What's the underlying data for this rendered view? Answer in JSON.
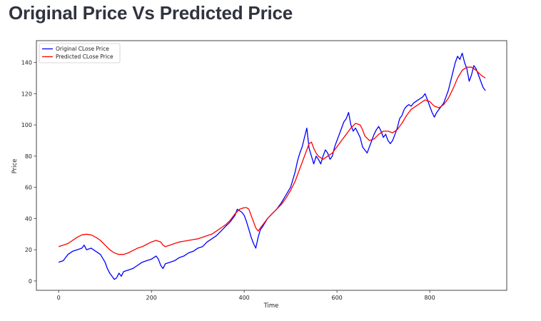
{
  "page": {
    "title": "Original Price Vs Predicted Price"
  },
  "chart_data": {
    "type": "line",
    "title": "",
    "xlabel": "Time",
    "ylabel": "Price",
    "xlim": [
      -48,
      966
    ],
    "ylim": [
      -6,
      154
    ],
    "xticks": [
      0,
      200,
      400,
      600,
      800
    ],
    "yticks": [
      0,
      20,
      40,
      60,
      80,
      100,
      120,
      140
    ],
    "grid": false,
    "legend": "top-left",
    "series": [
      {
        "name": "Original CLose Price",
        "color": "#0000ff",
        "points": [
          [
            0,
            12
          ],
          [
            10,
            13
          ],
          [
            20,
            17
          ],
          [
            30,
            19
          ],
          [
            40,
            20
          ],
          [
            50,
            21
          ],
          [
            55,
            23
          ],
          [
            60,
            20
          ],
          [
            70,
            21
          ],
          [
            80,
            19
          ],
          [
            90,
            17
          ],
          [
            100,
            12
          ],
          [
            105,
            8
          ],
          [
            110,
            5
          ],
          [
            115,
            3
          ],
          [
            120,
            1
          ],
          [
            125,
            2
          ],
          [
            130,
            5
          ],
          [
            135,
            3
          ],
          [
            140,
            6
          ],
          [
            150,
            7
          ],
          [
            160,
            8
          ],
          [
            170,
            10
          ],
          [
            180,
            12
          ],
          [
            190,
            13
          ],
          [
            200,
            14
          ],
          [
            210,
            16
          ],
          [
            215,
            14
          ],
          [
            220,
            10
          ],
          [
            225,
            8
          ],
          [
            230,
            11
          ],
          [
            240,
            12
          ],
          [
            250,
            13
          ],
          [
            260,
            15
          ],
          [
            270,
            16
          ],
          [
            280,
            18
          ],
          [
            290,
            19
          ],
          [
            300,
            21
          ],
          [
            310,
            22
          ],
          [
            320,
            25
          ],
          [
            330,
            27
          ],
          [
            340,
            29
          ],
          [
            350,
            32
          ],
          [
            360,
            35
          ],
          [
            370,
            38
          ],
          [
            380,
            42
          ],
          [
            385,
            46
          ],
          [
            390,
            45
          ],
          [
            395,
            44
          ],
          [
            400,
            42
          ],
          [
            405,
            38
          ],
          [
            410,
            33
          ],
          [
            415,
            28
          ],
          [
            420,
            24
          ],
          [
            425,
            21
          ],
          [
            430,
            28
          ],
          [
            435,
            33
          ],
          [
            440,
            35
          ],
          [
            450,
            40
          ],
          [
            460,
            43
          ],
          [
            470,
            46
          ],
          [
            480,
            50
          ],
          [
            490,
            55
          ],
          [
            500,
            60
          ],
          [
            505,
            65
          ],
          [
            510,
            70
          ],
          [
            515,
            77
          ],
          [
            520,
            82
          ],
          [
            525,
            86
          ],
          [
            530,
            92
          ],
          [
            535,
            98
          ],
          [
            540,
            85
          ],
          [
            545,
            80
          ],
          [
            550,
            75
          ],
          [
            555,
            80
          ],
          [
            560,
            78
          ],
          [
            565,
            75
          ],
          [
            570,
            80
          ],
          [
            575,
            84
          ],
          [
            580,
            82
          ],
          [
            585,
            78
          ],
          [
            590,
            80
          ],
          [
            595,
            86
          ],
          [
            600,
            90
          ],
          [
            605,
            94
          ],
          [
            610,
            98
          ],
          [
            615,
            102
          ],
          [
            620,
            104
          ],
          [
            625,
            108
          ],
          [
            630,
            100
          ],
          [
            635,
            96
          ],
          [
            640,
            98
          ],
          [
            645,
            95
          ],
          [
            650,
            92
          ],
          [
            655,
            86
          ],
          [
            660,
            84
          ],
          [
            665,
            82
          ],
          [
            670,
            86
          ],
          [
            675,
            90
          ],
          [
            680,
            94
          ],
          [
            685,
            97
          ],
          [
            690,
            99
          ],
          [
            695,
            96
          ],
          [
            700,
            92
          ],
          [
            705,
            94
          ],
          [
            710,
            90
          ],
          [
            715,
            88
          ],
          [
            720,
            90
          ],
          [
            725,
            94
          ],
          [
            730,
            98
          ],
          [
            735,
            104
          ],
          [
            740,
            106
          ],
          [
            745,
            110
          ],
          [
            750,
            112
          ],
          [
            755,
            113
          ],
          [
            760,
            112
          ],
          [
            765,
            114
          ],
          [
            770,
            115
          ],
          [
            775,
            116
          ],
          [
            780,
            117
          ],
          [
            785,
            118
          ],
          [
            790,
            120
          ],
          [
            795,
            116
          ],
          [
            800,
            112
          ],
          [
            805,
            108
          ],
          [
            810,
            105
          ],
          [
            815,
            108
          ],
          [
            820,
            110
          ],
          [
            825,
            112
          ],
          [
            830,
            114
          ],
          [
            835,
            118
          ],
          [
            840,
            122
          ],
          [
            845,
            128
          ],
          [
            850,
            134
          ],
          [
            855,
            140
          ],
          [
            860,
            144
          ],
          [
            865,
            142
          ],
          [
            870,
            146
          ],
          [
            875,
            140
          ],
          [
            880,
            136
          ],
          [
            885,
            128
          ],
          [
            890,
            132
          ],
          [
            895,
            138
          ],
          [
            900,
            136
          ],
          [
            905,
            132
          ],
          [
            910,
            128
          ],
          [
            915,
            124
          ],
          [
            920,
            122
          ]
        ]
      },
      {
        "name": "Predicted CLose Price",
        "color": "#ff0000",
        "points": [
          [
            0,
            22
          ],
          [
            10,
            23
          ],
          [
            20,
            24
          ],
          [
            30,
            26
          ],
          [
            40,
            28
          ],
          [
            50,
            29.5
          ],
          [
            60,
            30
          ],
          [
            70,
            29.5
          ],
          [
            80,
            28
          ],
          [
            90,
            26
          ],
          [
            100,
            23
          ],
          [
            110,
            20
          ],
          [
            120,
            18
          ],
          [
            130,
            17
          ],
          [
            140,
            17
          ],
          [
            150,
            18
          ],
          [
            160,
            19.5
          ],
          [
            170,
            21
          ],
          [
            180,
            22
          ],
          [
            190,
            23.5
          ],
          [
            200,
            25
          ],
          [
            210,
            26
          ],
          [
            220,
            25
          ],
          [
            225,
            23
          ],
          [
            230,
            22
          ],
          [
            240,
            23
          ],
          [
            250,
            24
          ],
          [
            260,
            25
          ],
          [
            270,
            25.5
          ],
          [
            280,
            26
          ],
          [
            290,
            26.5
          ],
          [
            300,
            27
          ],
          [
            310,
            28
          ],
          [
            320,
            29
          ],
          [
            330,
            30
          ],
          [
            340,
            32
          ],
          [
            350,
            34
          ],
          [
            360,
            36
          ],
          [
            370,
            39
          ],
          [
            380,
            43
          ],
          [
            390,
            46
          ],
          [
            400,
            47
          ],
          [
            405,
            47
          ],
          [
            410,
            46
          ],
          [
            415,
            42
          ],
          [
            420,
            38
          ],
          [
            425,
            34
          ],
          [
            430,
            32
          ],
          [
            440,
            36
          ],
          [
            450,
            40
          ],
          [
            460,
            43
          ],
          [
            470,
            46
          ],
          [
            480,
            49
          ],
          [
            490,
            53
          ],
          [
            500,
            58
          ],
          [
            510,
            64
          ],
          [
            520,
            72
          ],
          [
            530,
            80
          ],
          [
            540,
            88
          ],
          [
            545,
            89
          ],
          [
            550,
            85
          ],
          [
            555,
            82
          ],
          [
            560,
            80
          ],
          [
            570,
            78
          ],
          [
            580,
            80
          ],
          [
            590,
            82
          ],
          [
            600,
            86
          ],
          [
            610,
            90
          ],
          [
            620,
            94
          ],
          [
            630,
            98
          ],
          [
            640,
            101
          ],
          [
            650,
            100
          ],
          [
            655,
            97
          ],
          [
            660,
            93
          ],
          [
            670,
            90
          ],
          [
            680,
            91
          ],
          [
            690,
            94
          ],
          [
            700,
            96
          ],
          [
            710,
            96
          ],
          [
            720,
            95
          ],
          [
            730,
            97
          ],
          [
            740,
            101
          ],
          [
            750,
            106
          ],
          [
            760,
            110
          ],
          [
            770,
            112
          ],
          [
            780,
            114
          ],
          [
            790,
            116
          ],
          [
            800,
            115
          ],
          [
            810,
            112
          ],
          [
            820,
            111
          ],
          [
            830,
            113
          ],
          [
            840,
            117
          ],
          [
            850,
            123
          ],
          [
            860,
            130
          ],
          [
            870,
            135
          ],
          [
            880,
            137
          ],
          [
            890,
            137
          ],
          [
            900,
            135
          ],
          [
            910,
            132
          ],
          [
            920,
            130
          ]
        ]
      }
    ]
  }
}
